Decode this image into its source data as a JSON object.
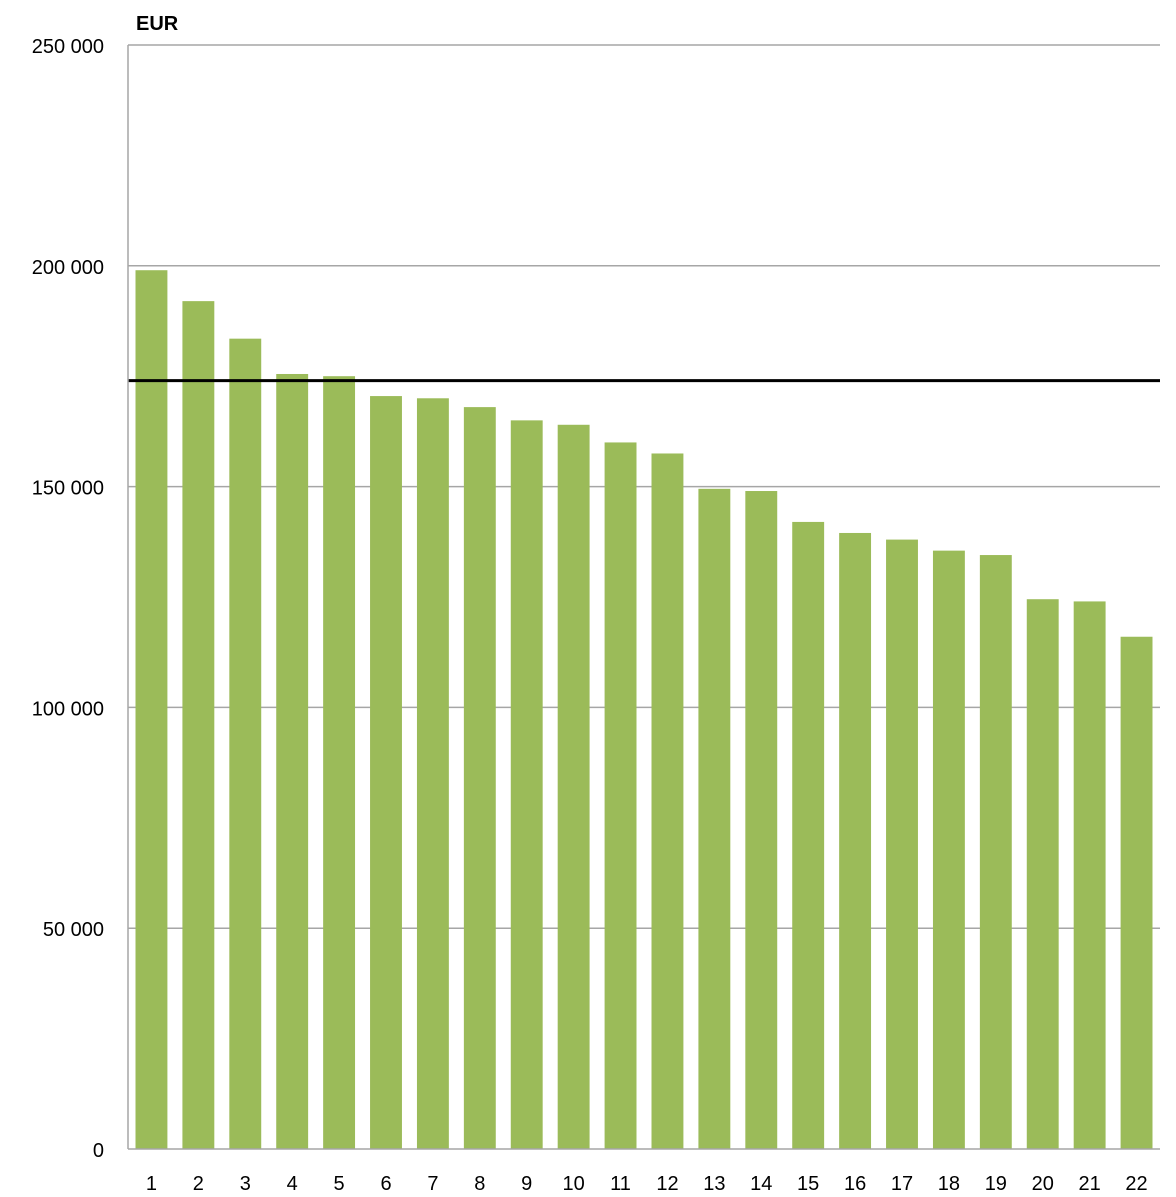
{
  "chart_data": {
    "type": "bar",
    "unit_label": "EUR",
    "categories": [
      "1",
      "2",
      "3",
      "4",
      "5",
      "6",
      "7",
      "8",
      "9",
      "10",
      "11",
      "12",
      "13",
      "14",
      "15",
      "16",
      "17",
      "18",
      "19",
      "20",
      "21",
      "22"
    ],
    "values": [
      199000,
      192000,
      183500,
      175500,
      175000,
      170500,
      170000,
      168000,
      165000,
      164000,
      160000,
      157500,
      149500,
      149000,
      142000,
      139500,
      138000,
      135500,
      134500,
      124500,
      124000,
      116000
    ],
    "reference_line": 174000,
    "ylim": [
      0,
      250000
    ],
    "y_ticks": [
      {
        "value": 0,
        "label": "0"
      },
      {
        "value": 50000,
        "label": "50 000"
      },
      {
        "value": 100000,
        "label": "100 000"
      },
      {
        "value": 150000,
        "label": "150 000"
      },
      {
        "value": 200000,
        "label": "200 000"
      },
      {
        "value": 250000,
        "label": "250 000"
      }
    ],
    "grid": true,
    "bar_color": "#9bbb59",
    "reference_line_color": "#000000",
    "grid_color": "#a6a6a6"
  }
}
